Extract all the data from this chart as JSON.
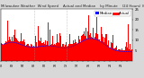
{
  "title_text": "Milwaukee Weather  Wind Speed    Actual and Median    by Minute    (24 Hours) (Old)",
  "title_fontsize": 2.8,
  "bg_color": "#d8d8d8",
  "plot_bg_color": "#ffffff",
  "bar_color": "#ff0000",
  "line_color": "#0000ff",
  "line_width": 0.5,
  "ylim": [
    0,
    25
  ],
  "yticks": [
    5,
    10,
    15,
    20,
    25
  ],
  "ytick_fontsize": 2.8,
  "xtick_fontsize": 2.3,
  "legend_fontsize": 2.8,
  "n_points": 1440,
  "seed": 42,
  "vline_x1": 360,
  "vline_x2": 720,
  "vline_color": "#999999"
}
